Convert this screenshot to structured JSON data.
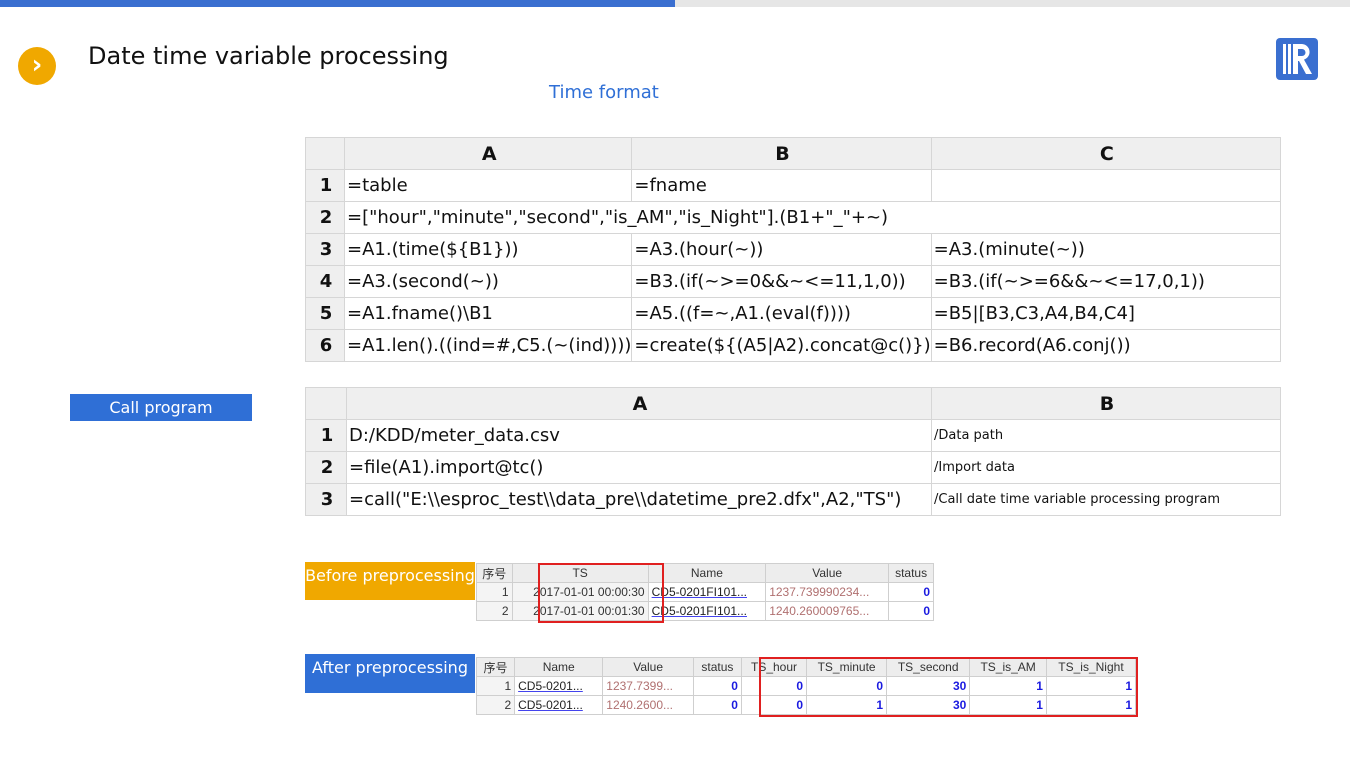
{
  "header": {
    "title": "Date time variable processing",
    "subtitle": "Time format",
    "accent": "#3a6fd0",
    "arrow_color": "#f0a800"
  },
  "grid1": {
    "cols": [
      "A",
      "B",
      "C"
    ],
    "rows": [
      {
        "n": "1",
        "a": "=table",
        "b": "=fname",
        "c": ""
      },
      {
        "n": "2",
        "a": "=[\"hour\",\"minute\",\"second\",\"is_AM\",\"is_Night\"].(B1+\"_\"+~)"
      },
      {
        "n": "3",
        "a": "=A1.(time(${B1}))",
        "b": "=A3.(hour(~))",
        "c": "=A3.(minute(~))"
      },
      {
        "n": "4",
        "a": "=A3.(second(~))",
        "b": "=B3.(if(~>=0&&~<=11,1,0))",
        "c": "=B3.(if(~>=6&&~<=17,0,1))"
      },
      {
        "n": "5",
        "a": "=A1.fname()\\B1",
        "b": "=A5.((f=~,A1.(eval(f))))",
        "c": "=B5|[B3,C3,A4,B4,C4]"
      },
      {
        "n": "6",
        "a": "=A1.len().((ind=#,C5.(~(ind))))",
        "b": "=create(${(A5|A2).concat@c()})",
        "c": "=B6.record(A6.conj())"
      }
    ]
  },
  "call_label": "Call program",
  "grid2": {
    "cols": [
      "A",
      "B"
    ],
    "rows": [
      {
        "n": "1",
        "a": "D:/KDD/meter_data.csv",
        "b": "/Data path"
      },
      {
        "n": "2",
        "a": "=file(A1).import@tc()",
        "b": "/Import data"
      },
      {
        "n": "3",
        "a": "=call(\"E:\\\\esproc_test\\\\data_pre\\\\datetime_pre2.dfx\",A2,\"TS\")",
        "b": "/Call date time variable processing program"
      }
    ]
  },
  "before": {
    "label": "Before preprocessing",
    "cols": [
      "序号",
      "TS",
      "Name",
      "Value",
      "status"
    ],
    "rows": [
      [
        "1",
        "2017-01-01 00:00:30",
        "CD5-0201FI101...",
        "1237.739990234...",
        "0"
      ],
      [
        "2",
        "2017-01-01 00:01:30",
        "CD5-0201FI101...",
        "1240.260009765...",
        "0"
      ]
    ]
  },
  "after": {
    "label": "After preprocessing",
    "cols": [
      "序号",
      "Name",
      "Value",
      "status",
      "TS_hour",
      "TS_minute",
      "TS_second",
      "TS_is_AM",
      "TS_is_Night"
    ],
    "rows": [
      [
        "1",
        "CD5-0201...",
        "1237.7399...",
        "0",
        "0",
        "0",
        "30",
        "1",
        "1"
      ],
      [
        "2",
        "CD5-0201...",
        "1240.2600...",
        "0",
        "0",
        "1",
        "30",
        "1",
        "1"
      ]
    ]
  }
}
